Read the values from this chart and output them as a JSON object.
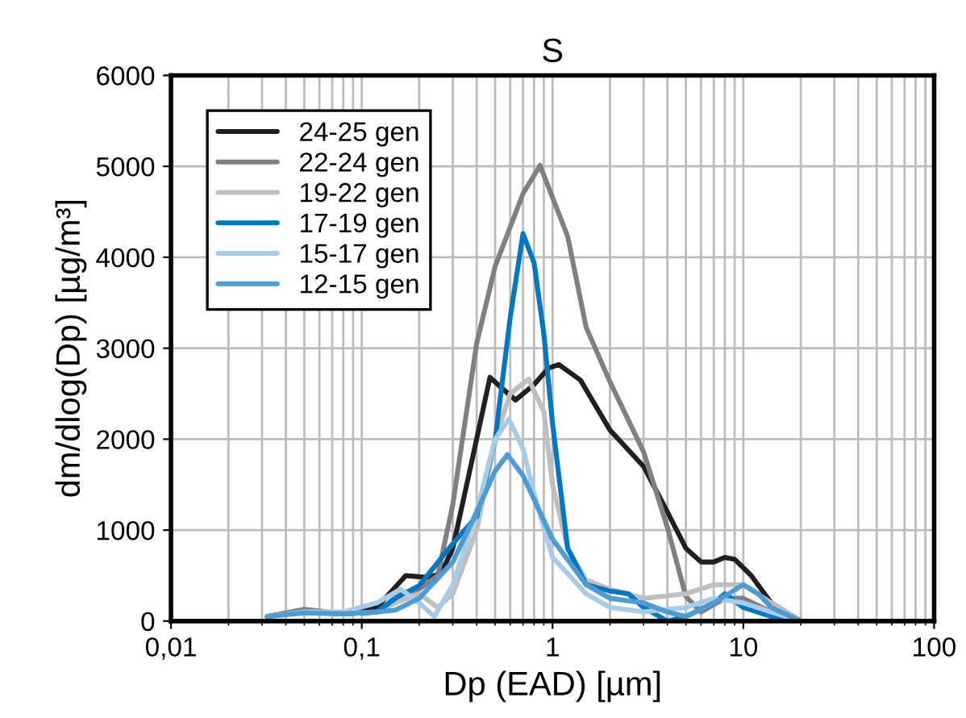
{
  "chart_data": {
    "type": "line",
    "title": "S",
    "xlabel": "Dp (EAD) [µm]",
    "ylabel": "dm/dlog(Dp) [µg/m³]",
    "log": "x",
    "xlim": [
      0.01,
      100
    ],
    "xticks": [
      {
        "value": 0.01,
        "label": "0,01"
      },
      {
        "value": 0.1,
        "label": "0,1"
      },
      1,
      10,
      100
    ],
    "ylim": [
      0,
      6000
    ],
    "yticks": [
      0,
      1000,
      2000,
      3000,
      4000,
      5000,
      6000
    ],
    "grid": true,
    "legend": "top left",
    "marker": "none",
    "line_style": "solid",
    "series": [
      {
        "name": "24-25 gen",
        "color": "#231f20",
        "x": [
          0.032,
          0.05,
          0.08,
          0.12,
          0.17,
          0.22,
          0.26,
          0.3,
          0.4,
          0.47,
          0.55,
          0.64,
          0.8,
          0.95,
          1.08,
          1.4,
          2,
          3,
          4,
          5,
          6,
          7,
          8,
          9,
          11,
          14,
          20
        ],
        "values": [
          50,
          120,
          80,
          150,
          500,
          480,
          520,
          800,
          2000,
          2680,
          2550,
          2430,
          2600,
          2780,
          2820,
          2650,
          2100,
          1700,
          1200,
          800,
          650,
          650,
          700,
          680,
          500,
          200,
          0
        ]
      },
      {
        "name": "22-24 gen",
        "color": "#808080",
        "x": [
          0.032,
          0.05,
          0.08,
          0.12,
          0.16,
          0.2,
          0.25,
          0.3,
          0.4,
          0.5,
          0.7,
          0.86,
          1.2,
          1.5,
          2,
          3,
          4,
          5,
          6,
          8,
          10,
          14,
          20
        ],
        "values": [
          50,
          130,
          80,
          100,
          300,
          350,
          500,
          1280,
          3050,
          3900,
          4700,
          5010,
          4230,
          3230,
          2630,
          1860,
          1030,
          270,
          100,
          250,
          250,
          100,
          0
        ]
      },
      {
        "name": "19-22 gen",
        "color": "#bfbfbf",
        "x": [
          0.032,
          0.05,
          0.08,
          0.12,
          0.15,
          0.2,
          0.25,
          0.3,
          0.4,
          0.5,
          0.6,
          0.75,
          0.9,
          1.0,
          1.2,
          1.5,
          2,
          3,
          5,
          7,
          10,
          14,
          20
        ],
        "values": [
          50,
          100,
          80,
          100,
          200,
          300,
          150,
          300,
          1000,
          2000,
          2500,
          2660,
          2300,
          1500,
          800,
          450,
          350,
          250,
          300,
          400,
          400,
          200,
          0
        ]
      },
      {
        "name": "17-19 gen",
        "color": "#0077be",
        "x": [
          0.032,
          0.05,
          0.08,
          0.12,
          0.15,
          0.2,
          0.3,
          0.4,
          0.5,
          0.6,
          0.7,
          0.8,
          0.9,
          1.0,
          1.2,
          1.5,
          2,
          2.5,
          3,
          4,
          5,
          7,
          8,
          10,
          14,
          20
        ],
        "values": [
          50,
          100,
          80,
          100,
          250,
          390,
          850,
          1150,
          1990,
          3340,
          4260,
          3940,
          3160,
          2170,
          800,
          400,
          330,
          300,
          150,
          0,
          50,
          200,
          300,
          150,
          50,
          0
        ]
      },
      {
        "name": "15-17 gen",
        "color": "#a8cbe8",
        "x": [
          0.032,
          0.05,
          0.08,
          0.12,
          0.16,
          0.2,
          0.24,
          0.3,
          0.4,
          0.5,
          0.59,
          0.7,
          0.8,
          1,
          1.5,
          2,
          3,
          5,
          7,
          10,
          14,
          20
        ],
        "values": [
          50,
          100,
          100,
          200,
          350,
          200,
          50,
          400,
          1200,
          2000,
          2220,
          1900,
          1400,
          700,
          300,
          150,
          100,
          150,
          250,
          200,
          100,
          0
        ]
      },
      {
        "name": "12-15 gen",
        "color": "#4f9bd4",
        "x": [
          0.032,
          0.05,
          0.08,
          0.12,
          0.15,
          0.2,
          0.3,
          0.4,
          0.5,
          0.58,
          0.7,
          1,
          1.5,
          2,
          3,
          4,
          5,
          7,
          10,
          12,
          14,
          20
        ],
        "values": [
          50,
          90,
          80,
          100,
          120,
          250,
          650,
          1200,
          1650,
          1830,
          1600,
          900,
          400,
          250,
          200,
          100,
          50,
          200,
          400,
          300,
          150,
          0
        ]
      }
    ]
  }
}
